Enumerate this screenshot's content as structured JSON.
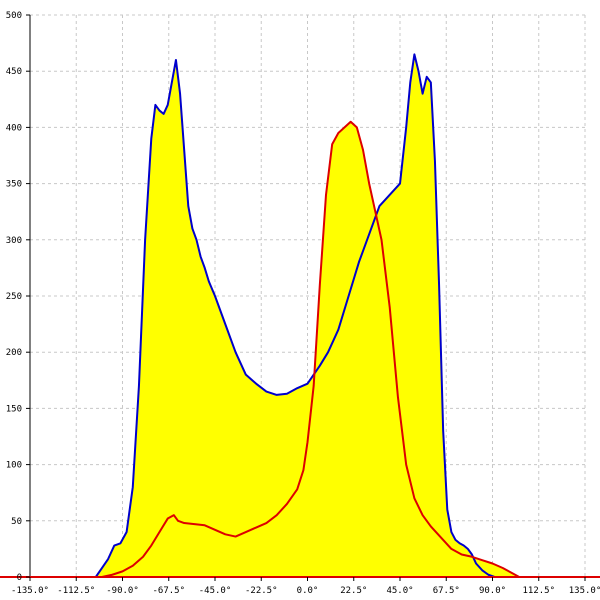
{
  "chart_data": {
    "type": "area",
    "title": "",
    "xlabel": "",
    "ylabel": "",
    "xlim": [
      -135,
      135
    ],
    "ylim": [
      0,
      500
    ],
    "grid": true,
    "legend": "none",
    "x_ticks": [
      -135,
      -112.5,
      -90,
      -67.5,
      -45,
      -22.5,
      0,
      22.5,
      45,
      67.5,
      90,
      112.5,
      135
    ],
    "x_tick_labels": [
      "-135.0°",
      "-112.5°",
      "-90.0°",
      "-67.5°",
      "-45.0°",
      "-22.5°",
      "0.0°",
      "22.5°",
      "45.0°",
      "67.5°",
      "90.0°",
      "112.5°",
      "135.0°"
    ],
    "y_ticks": [
      0,
      50,
      100,
      150,
      200,
      250,
      300,
      350,
      400,
      450,
      500
    ],
    "y_tick_labels": [
      "0",
      "50",
      "100",
      "150",
      "200",
      "250",
      "300",
      "350",
      "400",
      "450",
      "500"
    ],
    "fill_color": "#ffff00",
    "series": [
      {
        "color": "#0000cc",
        "x": [
          -103,
          -100,
          -97,
          -94,
          -91,
          -88,
          -85,
          -82,
          -79,
          -76,
          -74,
          -72,
          -70,
          -68,
          -66,
          -64,
          -62,
          -60,
          -58,
          -56,
          -54,
          -52,
          -50,
          -48,
          -45,
          -40,
          -35,
          -30,
          -25,
          -20,
          -15,
          -10,
          -5,
          0,
          3,
          6,
          10,
          15,
          20,
          25,
          30,
          35,
          40,
          45,
          48,
          50,
          52,
          54,
          56,
          58,
          60,
          62,
          64,
          66,
          68,
          70,
          72,
          74,
          76,
          78,
          80,
          82,
          85,
          88,
          91,
          94,
          97,
          100,
          103
        ],
        "y": [
          0,
          8,
          16,
          28,
          30,
          40,
          80,
          170,
          300,
          390,
          420,
          415,
          412,
          420,
          440,
          460,
          430,
          380,
          330,
          310,
          300,
          285,
          275,
          263,
          250,
          225,
          200,
          180,
          172,
          165,
          162,
          163,
          168,
          172,
          180,
          188,
          200,
          220,
          250,
          280,
          305,
          330,
          340,
          350,
          400,
          440,
          465,
          450,
          430,
          445,
          440,
          370,
          260,
          130,
          60,
          40,
          33,
          30,
          28,
          25,
          20,
          12,
          6,
          2,
          0,
          0,
          0,
          0,
          0
        ]
      },
      {
        "color": "#dd0000",
        "x": [
          -103,
          -100,
          -95,
          -90,
          -85,
          -80,
          -76,
          -72,
          -68,
          -65,
          -63,
          -60,
          -55,
          -50,
          -45,
          -40,
          -35,
          -30,
          -25,
          -20,
          -15,
          -10,
          -5,
          -2,
          0,
          3,
          6,
          9,
          12,
          15,
          18,
          21,
          24,
          27,
          30,
          33,
          36,
          40,
          44,
          48,
          52,
          56,
          60,
          65,
          70,
          75,
          80,
          85,
          90,
          95,
          100,
          103
        ],
        "y": [
          0,
          0,
          2,
          5,
          10,
          18,
          28,
          40,
          52,
          55,
          50,
          48,
          47,
          46,
          42,
          38,
          36,
          40,
          44,
          48,
          55,
          65,
          78,
          95,
          120,
          170,
          260,
          340,
          385,
          395,
          400,
          405,
          400,
          380,
          350,
          325,
          300,
          240,
          160,
          100,
          70,
          55,
          45,
          35,
          25,
          20,
          18,
          15,
          12,
          8,
          3,
          0
        ]
      }
    ]
  }
}
